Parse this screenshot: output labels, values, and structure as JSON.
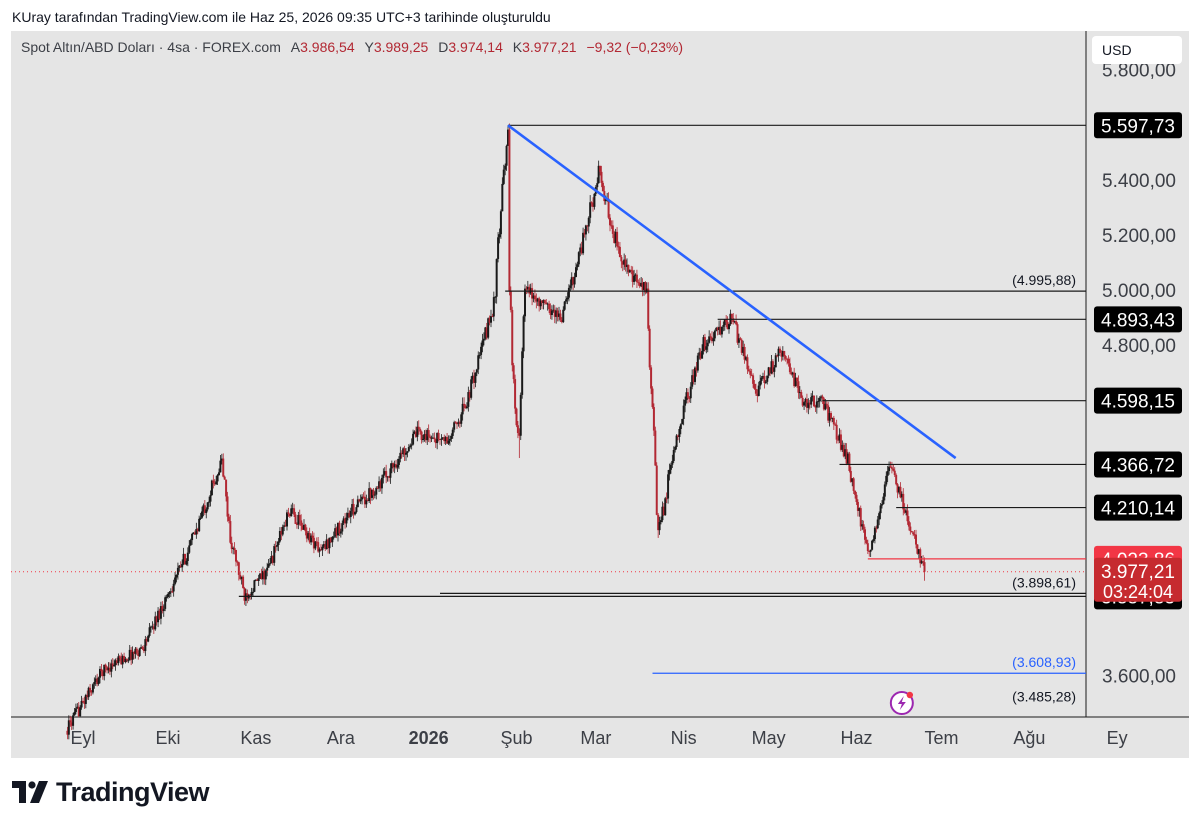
{
  "header_note": "KUray tarafından TradingView.com ile Haz 25, 2026 09:35 UTC+3 tarihinde oluşturuldu",
  "legend": {
    "symbol": "Spot Altın/ABD Doları · 4sa · FOREX.com",
    "open_label": "A",
    "open": "3.986,54",
    "high_label": "Y",
    "high": "3.989,25",
    "low_label": "D",
    "low": "3.974,14",
    "close_label": "K",
    "close": "3.977,21",
    "change": "−9,32 (−0,23%)"
  },
  "currency_button": "USD",
  "brand_name": "TradingView",
  "colors": {
    "background": "#e5e5e5",
    "up_candle": "#1a1a1a",
    "down_candle": "#b22833",
    "trendline": "#2962ff",
    "price_red": "#f23645",
    "price_dark_red": "#c62a2f",
    "tag_black": "#000000",
    "projection_blue": "#2962ff"
  },
  "chart_data": {
    "type": "candlestick",
    "symbol": "Spot Altın/ABD Doları",
    "timeframe": "4sa",
    "ylim": [
      3450,
      5940
    ],
    "y_ticks": [
      "3.600,00",
      "4.800,00",
      "5.000,00",
      "5.200,00",
      "5.400,00",
      "5.800,00"
    ],
    "y_tick_values": [
      3600,
      4800,
      5000,
      5200,
      5400,
      5800
    ],
    "x_ticks": [
      {
        "label": "Eyl",
        "date": "2025-09-01"
      },
      {
        "label": "Eki",
        "date": "2025-10-01"
      },
      {
        "label": "Kas",
        "date": "2025-11-01"
      },
      {
        "label": "Ara",
        "date": "2025-12-01"
      },
      {
        "label": "2026",
        "date": "2026-01-01",
        "bold": true
      },
      {
        "label": "Şub",
        "date": "2026-02-01"
      },
      {
        "label": "Mar",
        "date": "2026-03-01"
      },
      {
        "label": "Nis",
        "date": "2026-04-01"
      },
      {
        "label": "May",
        "date": "2026-05-01"
      },
      {
        "label": "Haz",
        "date": "2026-06-01"
      },
      {
        "label": "Tem",
        "date": "2026-07-01"
      },
      {
        "label": "Ağu",
        "date": "2026-08-01"
      },
      {
        "label": "Ey",
        "date": "2026-09-01"
      }
    ],
    "price_path": [
      {
        "date": "2025-08-26",
        "close": 3400
      },
      {
        "date": "2025-09-08",
        "close": 3620
      },
      {
        "date": "2025-09-22",
        "close": 3700
      },
      {
        "date": "2025-10-08",
        "close": 4050
      },
      {
        "date": "2025-10-20",
        "close": 4380
      },
      {
        "date": "2025-10-23",
        "close": 4100
      },
      {
        "date": "2025-10-28",
        "close": 3890
      },
      {
        "date": "2025-11-05",
        "close": 3980
      },
      {
        "date": "2025-11-13",
        "close": 4200
      },
      {
        "date": "2025-11-24",
        "close": 4050
      },
      {
        "date": "2025-12-05",
        "close": 4200
      },
      {
        "date": "2025-12-15",
        "close": 4300
      },
      {
        "date": "2025-12-28",
        "close": 4480
      },
      {
        "date": "2026-01-08",
        "close": 4450
      },
      {
        "date": "2026-01-15",
        "close": 4610
      },
      {
        "date": "2026-01-24",
        "close": 4950
      },
      {
        "date": "2026-01-29",
        "close": 5597.73
      },
      {
        "date": "2026-01-30",
        "close": 4750
      },
      {
        "date": "2026-02-02",
        "close": 4450
      },
      {
        "date": "2026-02-04",
        "close": 5000
      },
      {
        "date": "2026-02-10",
        "close": 4950
      },
      {
        "date": "2026-02-17",
        "close": 4900
      },
      {
        "date": "2026-02-25",
        "close": 5200
      },
      {
        "date": "2026-03-02",
        "close": 5420
      },
      {
        "date": "2026-03-08",
        "close": 5180
      },
      {
        "date": "2026-03-13",
        "close": 5050
      },
      {
        "date": "2026-03-19",
        "close": 4995.88
      },
      {
        "date": "2026-03-23",
        "close": 4100
      },
      {
        "date": "2026-03-30",
        "close": 4500
      },
      {
        "date": "2026-04-08",
        "close": 4800
      },
      {
        "date": "2026-04-18",
        "close": 4893.43
      },
      {
        "date": "2026-04-27",
        "close": 4630
      },
      {
        "date": "2026-05-06",
        "close": 4790
      },
      {
        "date": "2026-05-13",
        "close": 4590
      },
      {
        "date": "2026-05-20",
        "close": 4598.15
      },
      {
        "date": "2026-05-29",
        "close": 4380
      },
      {
        "date": "2026-06-05",
        "close": 4030
      },
      {
        "date": "2026-06-13",
        "close": 4366.72
      },
      {
        "date": "2026-06-18",
        "close": 4210.14
      },
      {
        "date": "2026-06-25",
        "close": 3977.21
      }
    ],
    "current_price": "3.977,21",
    "current_price_value": 3977.21,
    "countdown": "03:24:04",
    "levels": [
      {
        "price": 5597.73,
        "label": "5.597,73",
        "style": "tag"
      },
      {
        "price": 4995.88,
        "label": "(4.995,88)",
        "style": "bracket"
      },
      {
        "price": 4893.43,
        "label": "4.893,43",
        "style": "tag"
      },
      {
        "price": 4598.15,
        "label": "4.598,15",
        "style": "tag"
      },
      {
        "price": 4366.72,
        "label": "4.366,72",
        "style": "tag"
      },
      {
        "price": 4210.14,
        "label": "4.210,14",
        "style": "tag"
      },
      {
        "price": 4023.86,
        "label": "4.023,86",
        "style": "red-tag"
      },
      {
        "price": 3898.61,
        "label": "(3.898,61)",
        "style": "bracket"
      },
      {
        "price": 3887.83,
        "label": "3.887,83",
        "style": "tag"
      },
      {
        "price": 3608.93,
        "label": "(3.608,93)",
        "style": "bracket-blue"
      },
      {
        "price": 3485.28,
        "label": "(3.485,28)",
        "style": "bracket"
      }
    ],
    "trendline": [
      {
        "date": "2026-01-29",
        "price": 5597.73
      },
      {
        "date": "2026-07-06",
        "price": 4390
      }
    ]
  }
}
